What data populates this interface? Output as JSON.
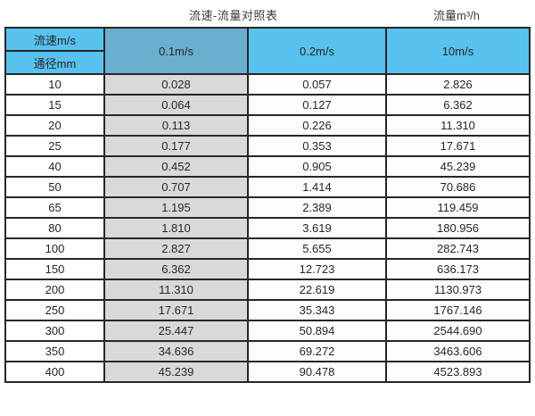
{
  "page": {
    "title": "流速-流量对照表",
    "unit_label": "流量m³/h"
  },
  "table": {
    "corner_top": "流速m/s",
    "corner_bottom": "通径mm",
    "velocity_columns": [
      "0.1m/s",
      "0.2m/s",
      "10m/s"
    ],
    "rows": [
      {
        "diameter": "10",
        "values": [
          "0.028",
          "0.057",
          "2.826"
        ]
      },
      {
        "diameter": "15",
        "values": [
          "0.064",
          "0.127",
          "6.362"
        ]
      },
      {
        "diameter": "20",
        "values": [
          "0.113",
          "0.226",
          "11.310"
        ]
      },
      {
        "diameter": "25",
        "values": [
          "0.177",
          "0.353",
          "17.671"
        ]
      },
      {
        "diameter": "40",
        "values": [
          "0.452",
          "0.905",
          "45.239"
        ]
      },
      {
        "diameter": "50",
        "values": [
          "0.707",
          "1.414",
          "70.686"
        ]
      },
      {
        "diameter": "65",
        "values": [
          "1.195",
          "2.389",
          "119.459"
        ]
      },
      {
        "diameter": "80",
        "values": [
          "1.810",
          "3.619",
          "180.956"
        ]
      },
      {
        "diameter": "100",
        "values": [
          "2.827",
          "5.655",
          "282.743"
        ]
      },
      {
        "diameter": "150",
        "values": [
          "6.362",
          "12.723",
          "636.173"
        ]
      },
      {
        "diameter": "200",
        "values": [
          "11.310",
          "22.619",
          "1130.973"
        ]
      },
      {
        "diameter": "250",
        "values": [
          "17.671",
          "35.343",
          "1767.146"
        ]
      },
      {
        "diameter": "300",
        "values": [
          "25.447",
          "50.894",
          "2544.690"
        ]
      },
      {
        "diameter": "350",
        "values": [
          "34.636",
          "69.272",
          "3463.606"
        ]
      },
      {
        "diameter": "400",
        "values": [
          "45.239",
          "90.478",
          "4523.893"
        ]
      }
    ]
  },
  "colors": {
    "header_blue": "#58c2ef",
    "header_blue_muted": "#6bafd0",
    "gray_column": "#d9d9d9",
    "border": "#262626"
  },
  "chart_data": {
    "type": "table",
    "title": "流速-流量对照表",
    "value_unit": "流量m³/h",
    "row_dimension_label": "通径mm",
    "column_dimension_label": "流速m/s",
    "categories": [
      10,
      15,
      20,
      25,
      40,
      50,
      65,
      80,
      100,
      150,
      200,
      250,
      300,
      350,
      400
    ],
    "series": [
      {
        "name": "0.1m/s",
        "values": [
          0.028,
          0.064,
          0.113,
          0.177,
          0.452,
          0.707,
          1.195,
          1.81,
          2.827,
          6.362,
          11.31,
          17.671,
          25.447,
          34.636,
          45.239
        ]
      },
      {
        "name": "0.2m/s",
        "values": [
          0.057,
          0.127,
          0.226,
          0.353,
          0.905,
          1.414,
          2.389,
          3.619,
          5.655,
          12.723,
          22.619,
          35.343,
          50.894,
          69.272,
          90.478
        ]
      },
      {
        "name": "10m/s",
        "values": [
          2.826,
          6.362,
          11.31,
          17.671,
          45.239,
          70.686,
          119.459,
          180.956,
          282.743,
          636.173,
          1130.973,
          1767.146,
          2544.69,
          3463.606,
          4523.893
        ]
      }
    ]
  }
}
